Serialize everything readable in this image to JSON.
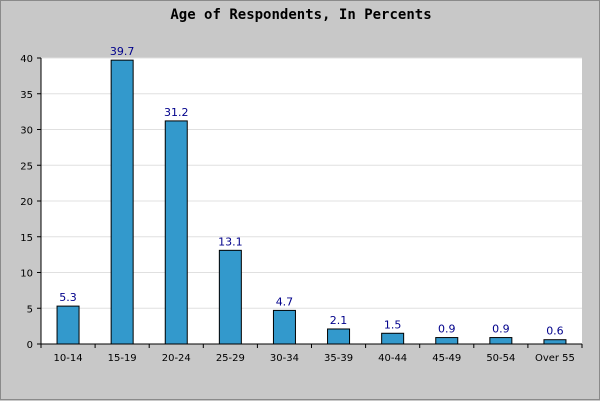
{
  "chart_data": {
    "type": "bar",
    "title": "Age of Respondents, In Percents",
    "categories": [
      "10-14",
      "15-19",
      "20-24",
      "25-29",
      "30-34",
      "35-39",
      "40-44",
      "45-49",
      "50-54",
      "Over 55"
    ],
    "values": [
      5.3,
      39.7,
      31.2,
      13.1,
      4.7,
      2.1,
      1.5,
      0.9,
      0.9,
      0.6
    ],
    "value_labels": [
      "5.3",
      "39.7",
      "31.2",
      "13.1",
      "4.7",
      "2.1",
      "1.5",
      "0.9",
      "0.9",
      "0.6"
    ],
    "ylim": [
      0,
      40
    ],
    "yticks": [
      "0",
      "5",
      "10",
      "15",
      "20",
      "25",
      "30",
      "35",
      "40"
    ],
    "grid": true,
    "bar_color": "#3399cc",
    "value_label_color": "#00008b",
    "background_color": "#c8c8c8",
    "plot_background": "#ffffff"
  }
}
